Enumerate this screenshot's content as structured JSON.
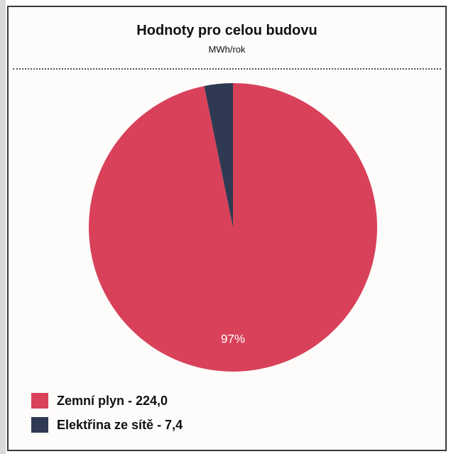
{
  "chart_data": {
    "type": "pie",
    "title": "Hodnoty pro celou budovu",
    "subtitle": "MWh/rok",
    "series": [
      {
        "name": "Zemní plyn",
        "value": 224.0,
        "value_label": "224,0",
        "color": "#d9415a",
        "percent_label": "97%"
      },
      {
        "name": "Elektřina ze sítě",
        "value": 7.4,
        "value_label": "7,4",
        "color": "#2f3a52",
        "percent_label": ""
      }
    ],
    "legend_position": "bottom-left"
  },
  "legend": {
    "item0": "Zemní plyn - 224,0",
    "item1": "Elektřina ze sítě - 7,4"
  }
}
